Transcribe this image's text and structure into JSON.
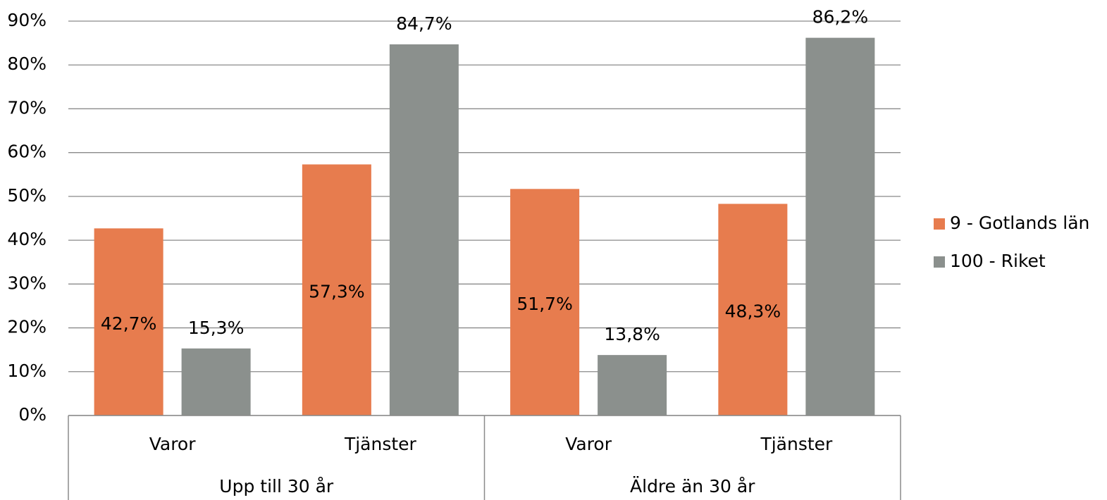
{
  "chart_data": {
    "type": "bar",
    "groups": [
      {
        "name": "Upp till 30 år",
        "categories": [
          "Varor",
          "Tjänster"
        ]
      },
      {
        "name": "Äldre än 30 år",
        "categories": [
          "Varor",
          "Tjänster"
        ]
      }
    ],
    "series": [
      {
        "name": "9 - Gotlands län",
        "color": "#e77c4e",
        "values": [
          42.7,
          57.3,
          51.7,
          48.3
        ],
        "value_labels": [
          "42,7%",
          "57,3%",
          "51,7%",
          "48,3%"
        ],
        "label_position": "center"
      },
      {
        "name": "100 - Riket",
        "color": "#8b908d",
        "values": [
          15.3,
          84.7,
          13.8,
          86.2
        ],
        "value_labels": [
          "15,3%",
          "84,7%",
          "13,8%",
          "86,2%"
        ],
        "label_position": "outside end"
      }
    ],
    "ylim": [
      0,
      90
    ],
    "yticks": [
      {
        "value": 0,
        "label": "0%"
      },
      {
        "value": 10,
        "label": "10%"
      },
      {
        "value": 20,
        "label": "20%"
      },
      {
        "value": 30,
        "label": "30%"
      },
      {
        "value": 40,
        "label": "40%"
      },
      {
        "value": 50,
        "label": "50%"
      },
      {
        "value": 60,
        "label": "60%"
      },
      {
        "value": 70,
        "label": "70%"
      },
      {
        "value": 80,
        "label": "80%"
      },
      {
        "value": 90,
        "label": "90%"
      }
    ],
    "grid": true,
    "legend": "right"
  }
}
